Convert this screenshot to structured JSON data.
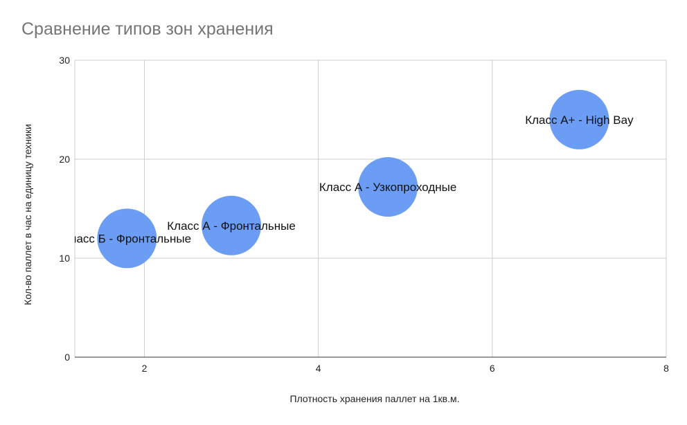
{
  "title": "Сравнение типов зон хранения",
  "chart_data": {
    "type": "scatter",
    "subtype": "bubble",
    "title": "Сравнение типов зон хранения",
    "xlabel": "Плотность хранения паллет на 1кв.м.",
    "ylabel": "Кол-во паллет в час на единицу техники",
    "xlim": [
      1.2,
      8
    ],
    "ylim": [
      0,
      30
    ],
    "xticks": [
      2,
      4,
      6,
      8
    ],
    "yticks": [
      0,
      10,
      20,
      30
    ],
    "grid": true,
    "legend": "none",
    "bubble_color": "#6b9df5",
    "points": [
      {
        "label": "Класс Б - Фронтальные",
        "x": 1.8,
        "y": 12
      },
      {
        "label": "Класс А - Фронтальные",
        "x": 3.0,
        "y": 13.3
      },
      {
        "label": "Класс А - Узкопроходные",
        "x": 4.8,
        "y": 17.2
      },
      {
        "label": "Класс А+ - High Bay",
        "x": 7.0,
        "y": 24
      }
    ]
  }
}
